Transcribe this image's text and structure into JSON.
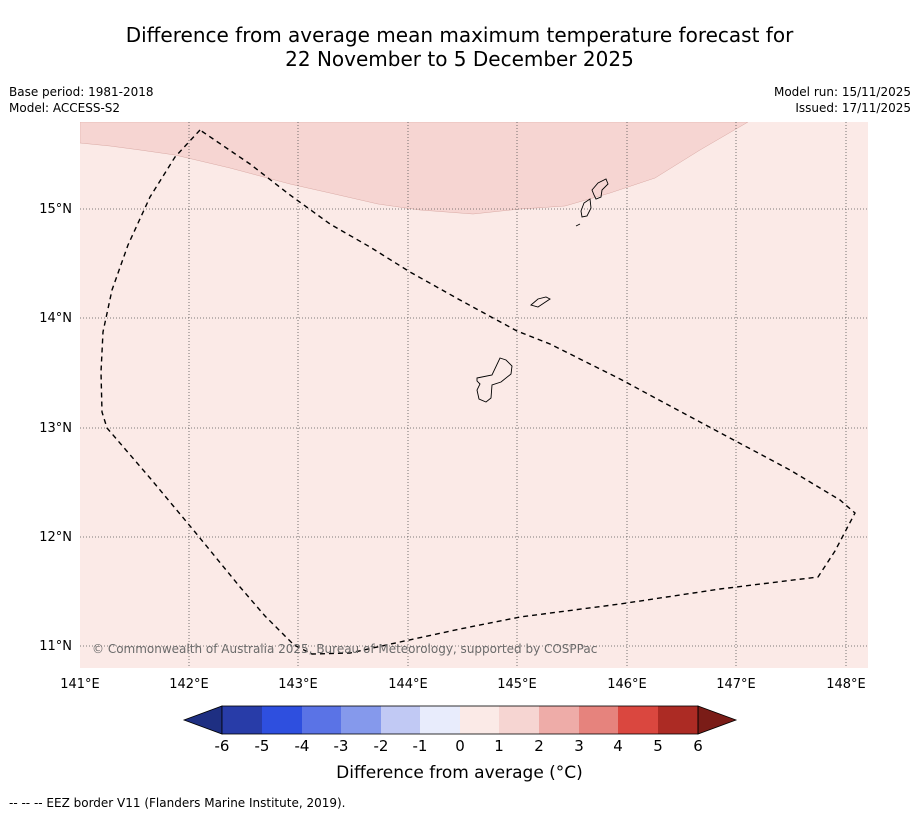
{
  "title": {
    "line1": "Difference from average mean maximum temperature forecast for",
    "line2": "22 November to 5 December 2025"
  },
  "meta": {
    "base_period": "Base period: 1981-2018",
    "model": "Model: ACCESS-S2",
    "model_run": "Model run: 15/11/2025",
    "issued": "Issued: 17/11/2025"
  },
  "map": {
    "lon_labels": [
      "141°E",
      "142°E",
      "143°E",
      "144°E",
      "145°E",
      "146°E",
      "147°E",
      "148°E"
    ],
    "lat_labels": [
      "15°N",
      "14°N",
      "13°N",
      "12°N",
      "11°N"
    ],
    "copyright": "© Commonwealth of Australia 2025, Bureau of Meteorology, supported by COSPPac",
    "anomaly_colors": {
      "zero_to_one": "#fbeae7",
      "one_to_two": "#f6d5d2"
    }
  },
  "colorbar": {
    "title": "Difference from average (°C)",
    "ticks": [
      "-6",
      "-5",
      "-4",
      "-3",
      "-2",
      "-1",
      "0",
      "1",
      "2",
      "3",
      "4",
      "5",
      "6"
    ],
    "colors": [
      "#283ca8",
      "#2e4fdf",
      "#5a73e6",
      "#8599ec",
      "#c1c9f4",
      "#e8ecfc",
      "#fbeae7",
      "#f6d5d2",
      "#eeaca8",
      "#e6837d",
      "#da473f",
      "#ac2b24"
    ],
    "low_extend_color": "#1e2f82",
    "high_extend_color": "#7a1c17"
  },
  "footnote": "--  --  -- EEZ border V11 (Flanders Marine Institute, 2019)."
}
